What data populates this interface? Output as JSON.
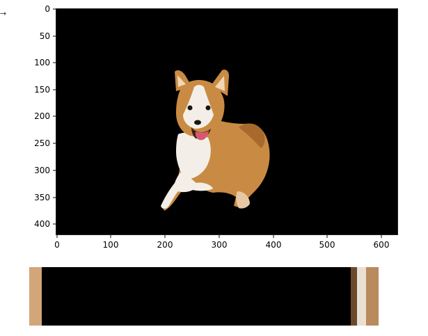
{
  "axis": {
    "y_ticks": [
      "0",
      "50",
      "100",
      "150",
      "200",
      "250",
      "300",
      "350",
      "400"
    ],
    "x_ticks": [
      "0",
      "100",
      "200",
      "300",
      "400",
      "500",
      "600"
    ]
  },
  "colors": {
    "background": "#000000",
    "fur_orange": "#c98b43",
    "fur_dark": "#a8692d",
    "fur_white": "#f3efe8",
    "tongue": "#d55a6f",
    "strip_tan": "#d2a679",
    "strip_brown": "#6b4a2b",
    "strip_light": "#e9e0d3",
    "strip_mid": "#b98a5e"
  },
  "image": {
    "subject": "corgi-dog",
    "strip_bands": [
      {
        "color": "#d2a679",
        "share": 0.036
      },
      {
        "color": "#000000",
        "share": 0.885
      },
      {
        "color": "#6b4a2b",
        "share": 0.018
      },
      {
        "color": "#e9e0d3",
        "share": 0.025
      },
      {
        "color": "#b98a5e",
        "share": 0.036
      }
    ]
  }
}
